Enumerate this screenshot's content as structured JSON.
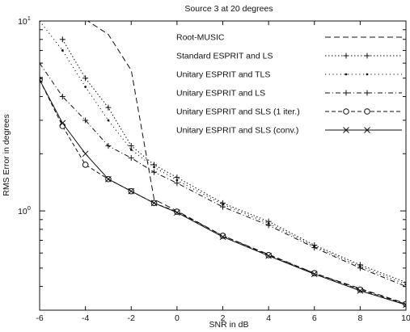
{
  "chart_data": {
    "type": "line",
    "title": "Source 3 at 20 degrees",
    "xlabel": "SNR in dB",
    "ylabel": "RMS Error in degrees",
    "xlim": [
      -6,
      10
    ],
    "ylim": [
      0.3,
      10
    ],
    "yscale": "log",
    "grid": false,
    "legend_position": "top-right",
    "x_ticks": [
      "-6",
      "-4",
      "-2",
      "0",
      "2",
      "4",
      "6",
      "8",
      "10"
    ],
    "y_ticks": [
      {
        "value": 1,
        "base": "10",
        "exp": "0"
      },
      {
        "value": 10,
        "base": "10",
        "exp": "1"
      }
    ],
    "x": [
      -6,
      -5,
      -4,
      -3,
      -2,
      -1,
      0,
      2,
      4,
      6,
      8,
      10
    ],
    "series": [
      {
        "name": "Root-MUSIC",
        "dash": "7,4",
        "marker": "none",
        "values": [
          null,
          null,
          10.2,
          8.5,
          5.5,
          1.15,
          1.0,
          0.74,
          0.59,
          0.47,
          0.39,
          0.325
        ]
      },
      {
        "name": "Standard ESPRIT and LS",
        "dash": "1.5,2.5",
        "marker": "plus",
        "values": [
          null,
          8.0,
          5.0,
          3.5,
          2.2,
          1.75,
          1.5,
          1.1,
          0.88,
          0.66,
          0.52,
          0.42
        ]
      },
      {
        "name": "Unitary ESPRIT and TLS",
        "dash": "1.2,3.5",
        "marker": "dot",
        "values": [
          10.0,
          7.0,
          4.5,
          3.0,
          2.1,
          1.7,
          1.45,
          1.08,
          0.86,
          0.65,
          0.51,
          0.41
        ]
      },
      {
        "name": "Unitary ESPRIT and LS",
        "dash": "6,3,1,3",
        "marker": "plus",
        "values": [
          6.0,
          4.0,
          3.0,
          2.2,
          1.9,
          1.6,
          1.4,
          1.05,
          0.84,
          0.64,
          0.5,
          0.4
        ]
      },
      {
        "name": "Unitary ESPRIT and SLS (1 iter.)",
        "dash": "5,3",
        "marker": "circle",
        "values": [
          4.9,
          2.8,
          1.75,
          1.47,
          1.27,
          1.1,
          0.99,
          0.74,
          0.585,
          0.47,
          0.385,
          0.323
        ]
      },
      {
        "name": "Unitary ESPRIT and SLS (conv.)",
        "dash": "",
        "marker": "x",
        "values": [
          4.9,
          2.9,
          2.0,
          1.47,
          1.27,
          1.1,
          0.98,
          0.73,
          0.58,
          0.465,
          0.38,
          0.32
        ]
      }
    ]
  }
}
